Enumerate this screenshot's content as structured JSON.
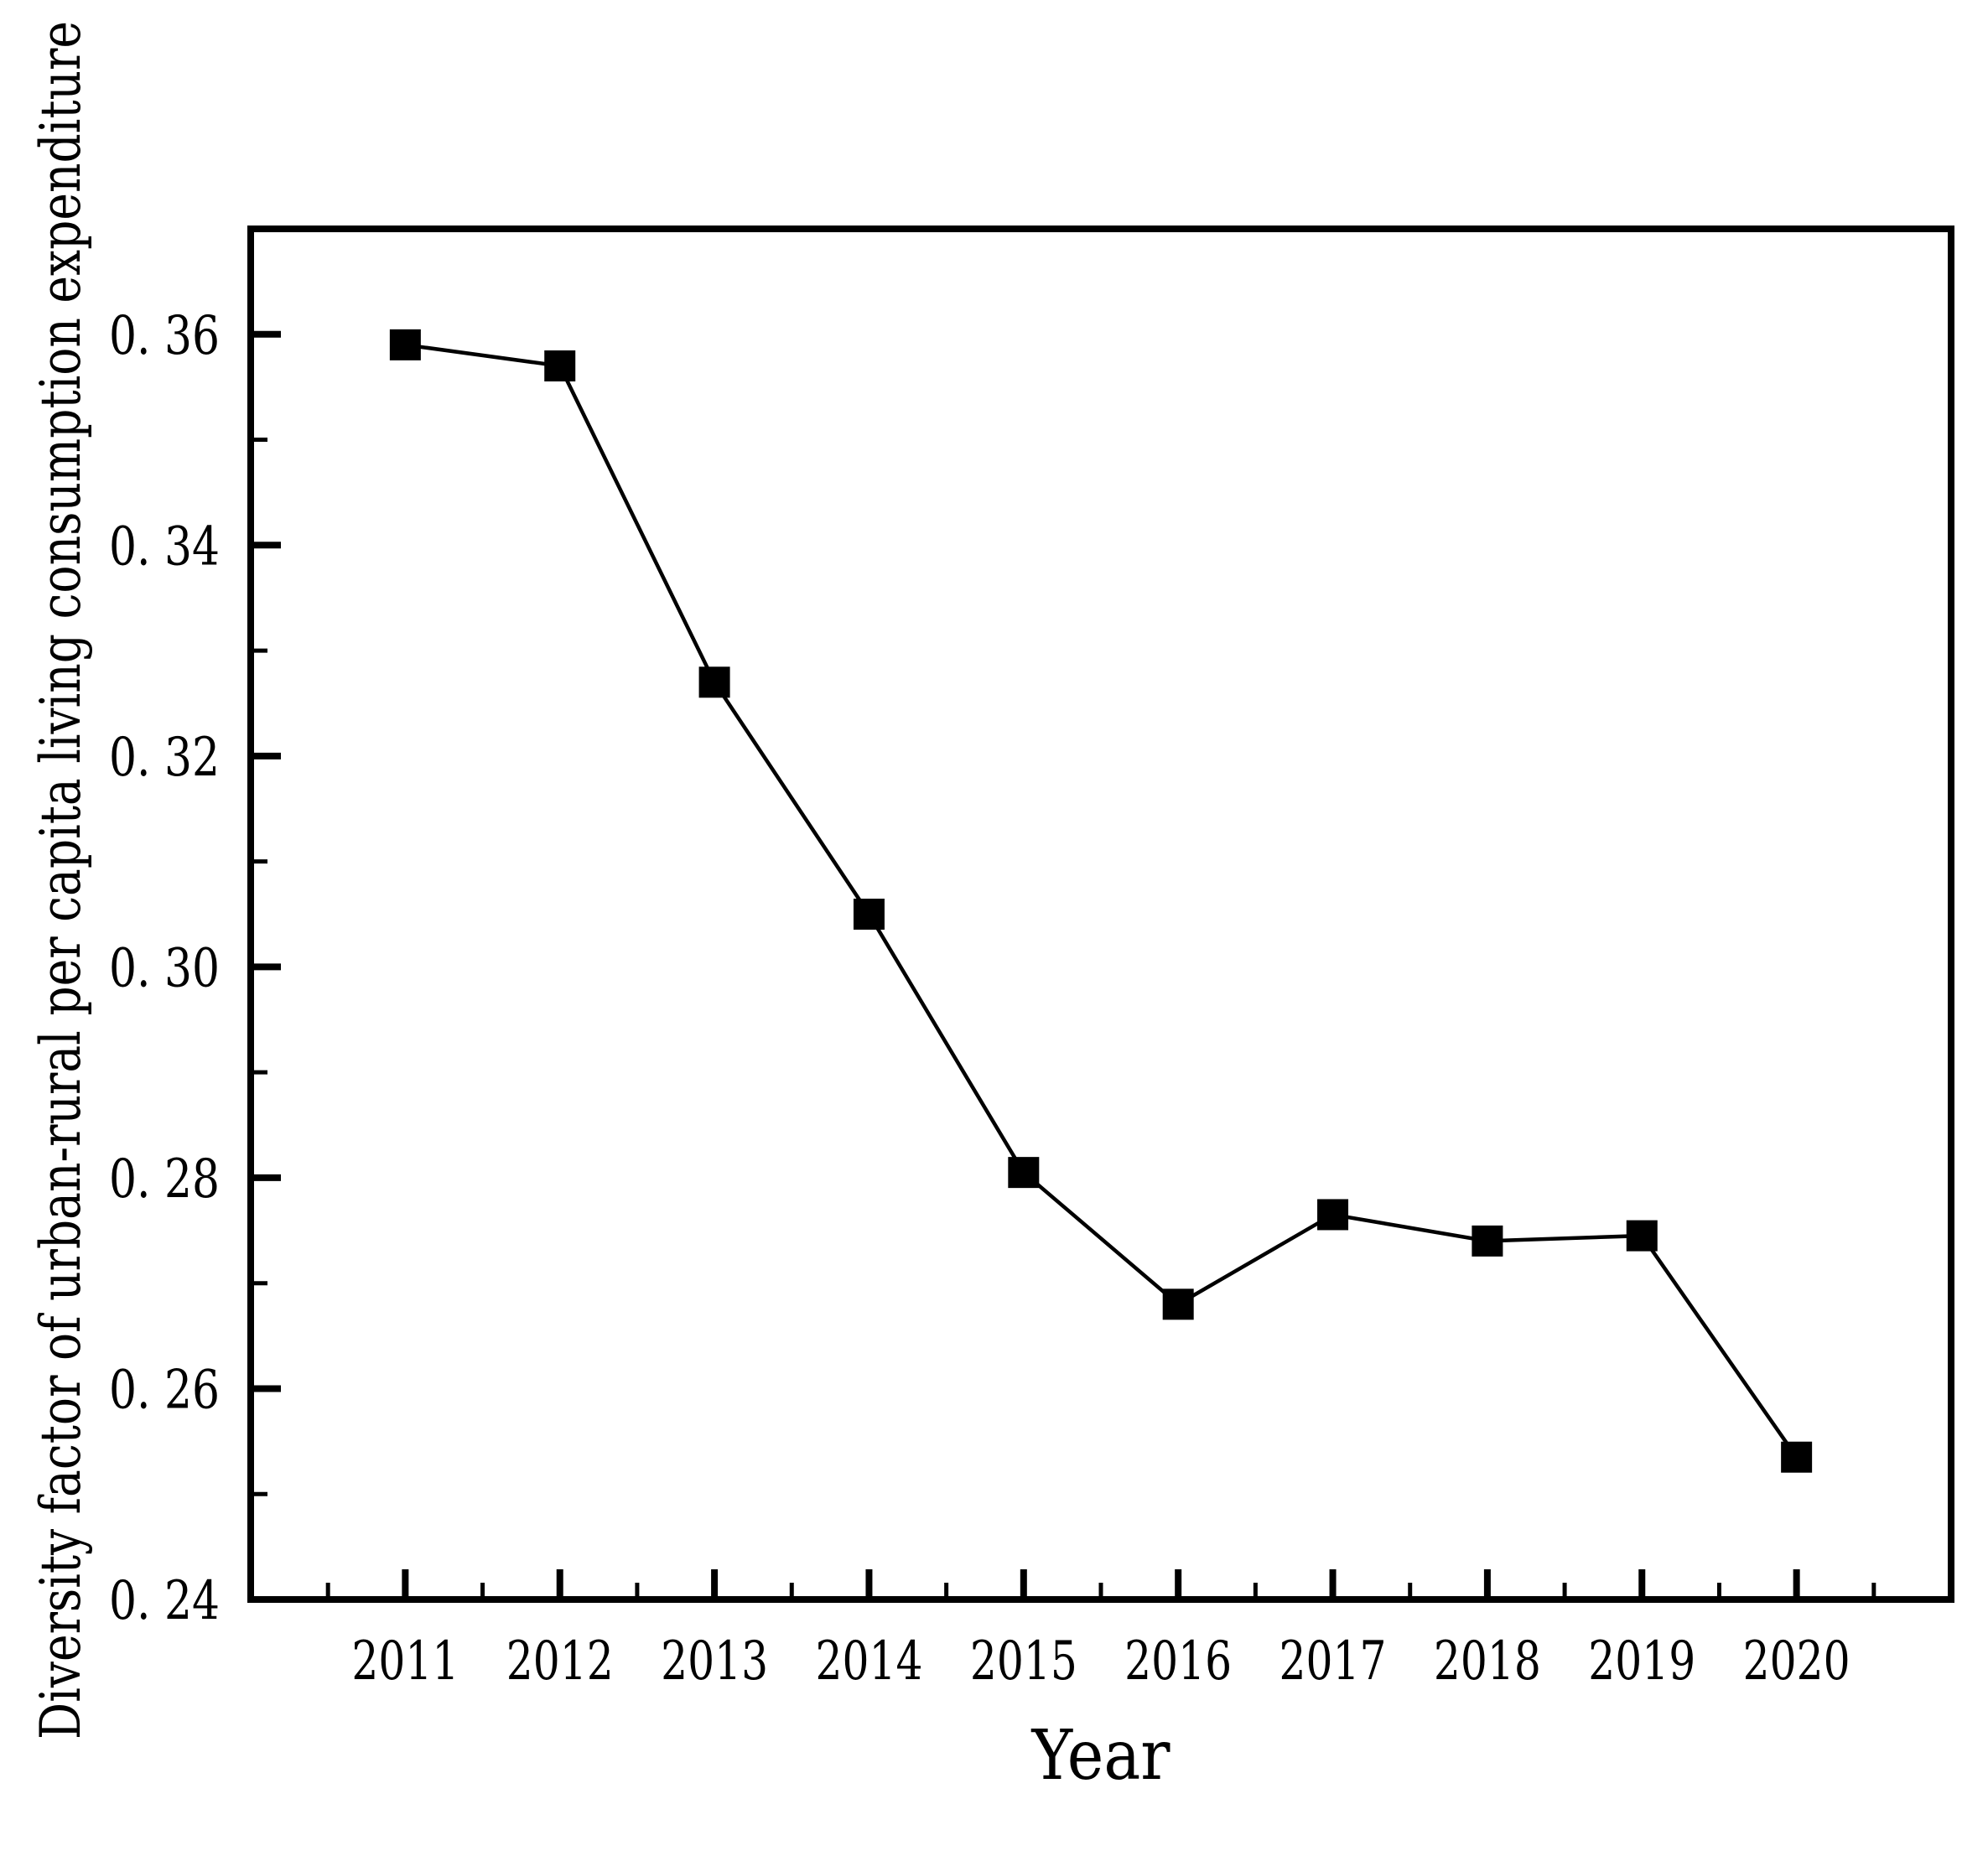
{
  "figure": {
    "background_color": "#ffffff"
  },
  "chart_data": {
    "type": "line",
    "title": "",
    "xlabel": "Year",
    "ylabel": "Diversity factor of urban-rural per capita living consumption expenditure",
    "x": [
      2011,
      2012,
      2013,
      2014,
      2015,
      2016,
      2017,
      2018,
      2019,
      2020
    ],
    "x_tick_labels": [
      "2011",
      "2012",
      "2013",
      "2014",
      "2015",
      "2016",
      "2017",
      "2018",
      "2019",
      "2020"
    ],
    "series": [
      {
        "name": "diversity-factor",
        "values": [
          0.359,
          0.357,
          0.327,
          0.305,
          0.2805,
          0.268,
          0.2765,
          0.274,
          0.2745,
          0.2535
        ],
        "line_color": "#000000",
        "marker": "filled-square",
        "marker_color": "#000000"
      }
    ],
    "xlim": [
      2010,
      2021
    ],
    "ylim": [
      0.24,
      0.37
    ],
    "y_ticks": [
      0.24,
      0.26,
      0.28,
      0.3,
      0.32,
      0.34,
      0.36
    ],
    "y_tick_labels": [
      "0.24",
      "0.26",
      "0.28",
      "0.30",
      "0.32",
      "0.34",
      "0.36"
    ],
    "x_minor_ticks": [
      2010.5,
      2011.5,
      2012.5,
      2013.5,
      2014.5,
      2015.5,
      2016.5,
      2017.5,
      2018.5,
      2019.5,
      2020.5
    ],
    "y_minor_ticks": [
      0.25,
      0.27,
      0.29,
      0.31,
      0.33,
      0.35
    ],
    "grid": false,
    "legend": "none",
    "axis_color": "#000000",
    "tick_direction": "in"
  }
}
